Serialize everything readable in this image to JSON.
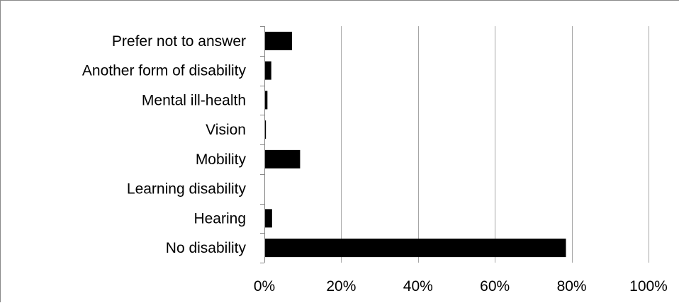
{
  "chart_data": {
    "type": "bar",
    "orientation": "horizontal",
    "categories": [
      "No disability",
      "Hearing",
      "Learning disability",
      "Mobility",
      "Vision",
      "Mental ill-health",
      "Another form of disability",
      "Prefer not to answer"
    ],
    "values": [
      78.5,
      2.0,
      0.0,
      9.3,
      0.4,
      0.8,
      1.8,
      7.2
    ],
    "xlim": [
      0,
      100
    ],
    "xticks": [
      0,
      20,
      40,
      60,
      80,
      100
    ],
    "xtick_labels": [
      "0%",
      "20%",
      "40%",
      "60%",
      "80%",
      "100%"
    ],
    "grid": "vertical",
    "legend": "none",
    "bar_color": "#000000",
    "grid_color": "#a6a6a6",
    "axis_color": "#8a8a8a"
  }
}
